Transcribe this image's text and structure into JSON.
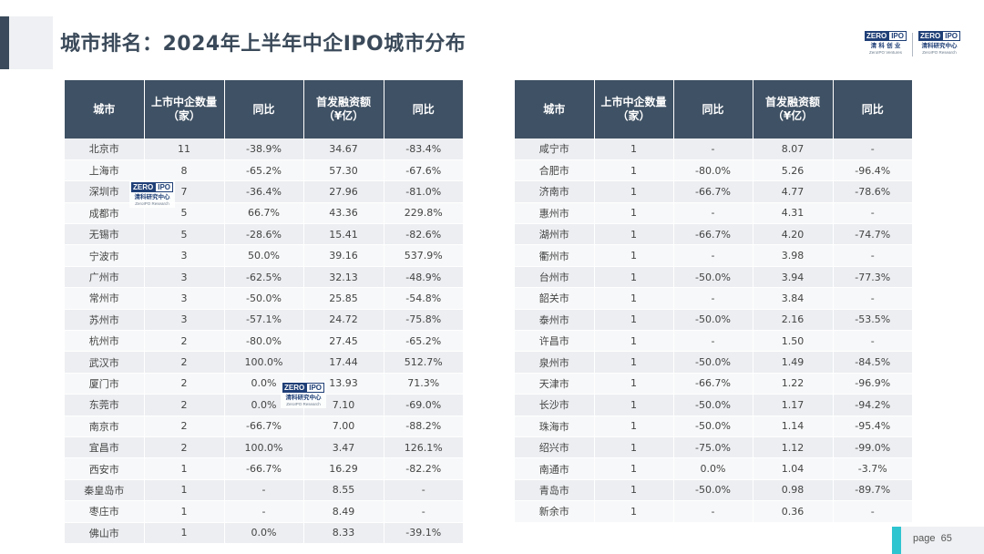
{
  "title": "城市排名：2024年上半年中企IPO城市分布",
  "logos": {
    "left": {
      "mark_a": "ZERO",
      "mark_b": "IPO",
      "cn": "清 科 创 业",
      "en": "ZeroIPO Ventures"
    },
    "right": {
      "mark_a": "ZERO",
      "mark_b": "IPO",
      "cn": "清科研究中心",
      "en": "ZeroIPO Research"
    }
  },
  "watermark": {
    "mark_a": "ZERO",
    "mark_b": "IPO",
    "cn": "清科研究中心",
    "en": "ZeroIPO Research"
  },
  "table_headers": [
    "城市",
    "上市中企数量\n（家）",
    "同比",
    "首发融资额\n（¥亿）",
    "同比"
  ],
  "left_table": [
    [
      "北京市",
      "11",
      "-38.9%",
      "34.67",
      "-83.4%"
    ],
    [
      "上海市",
      "8",
      "-65.2%",
      "57.30",
      "-67.6%"
    ],
    [
      "深圳市",
      "7",
      "-36.4%",
      "27.96",
      "-81.0%"
    ],
    [
      "成都市",
      "5",
      "66.7%",
      "43.36",
      "229.8%"
    ],
    [
      "无锡市",
      "5",
      "-28.6%",
      "15.41",
      "-82.6%"
    ],
    [
      "宁波市",
      "3",
      "50.0%",
      "39.16",
      "537.9%"
    ],
    [
      "广州市",
      "3",
      "-62.5%",
      "32.13",
      "-48.9%"
    ],
    [
      "常州市",
      "3",
      "-50.0%",
      "25.85",
      "-54.8%"
    ],
    [
      "苏州市",
      "3",
      "-57.1%",
      "24.72",
      "-75.8%"
    ],
    [
      "杭州市",
      "2",
      "-80.0%",
      "27.45",
      "-65.2%"
    ],
    [
      "武汉市",
      "2",
      "100.0%",
      "17.44",
      "512.7%"
    ],
    [
      "厦门市",
      "2",
      "0.0%",
      "13.93",
      "71.3%"
    ],
    [
      "东莞市",
      "2",
      "0.0%",
      "7.10",
      "-69.0%"
    ],
    [
      "南京市",
      "2",
      "-66.7%",
      "7.00",
      "-88.2%"
    ],
    [
      "宜昌市",
      "2",
      "100.0%",
      "3.47",
      "126.1%"
    ],
    [
      "西安市",
      "1",
      "-66.7%",
      "16.29",
      "-82.2%"
    ],
    [
      "秦皇岛市",
      "1",
      "-",
      "8.55",
      "-"
    ],
    [
      "枣庄市",
      "1",
      "-",
      "8.49",
      "-"
    ],
    [
      "佛山市",
      "1",
      "0.0%",
      "8.33",
      "-39.1%"
    ]
  ],
  "right_table": [
    [
      "咸宁市",
      "1",
      "-",
      "8.07",
      "-"
    ],
    [
      "合肥市",
      "1",
      "-80.0%",
      "5.26",
      "-96.4%"
    ],
    [
      "济南市",
      "1",
      "-66.7%",
      "4.77",
      "-78.6%"
    ],
    [
      "惠州市",
      "1",
      "-",
      "4.31",
      "-"
    ],
    [
      "湖州市",
      "1",
      "-66.7%",
      "4.20",
      "-74.7%"
    ],
    [
      "衢州市",
      "1",
      "-",
      "3.98",
      "-"
    ],
    [
      "台州市",
      "1",
      "-50.0%",
      "3.94",
      "-77.3%"
    ],
    [
      "韶关市",
      "1",
      "-",
      "3.84",
      "-"
    ],
    [
      "泰州市",
      "1",
      "-50.0%",
      "2.16",
      "-53.5%"
    ],
    [
      "许昌市",
      "1",
      "-",
      "1.50",
      "-"
    ],
    [
      "泉州市",
      "1",
      "-50.0%",
      "1.49",
      "-84.5%"
    ],
    [
      "天津市",
      "1",
      "-66.7%",
      "1.22",
      "-96.9%"
    ],
    [
      "长沙市",
      "1",
      "-50.0%",
      "1.17",
      "-94.2%"
    ],
    [
      "珠海市",
      "1",
      "-50.0%",
      "1.14",
      "-95.4%"
    ],
    [
      "绍兴市",
      "1",
      "-75.0%",
      "1.12",
      "-99.0%"
    ],
    [
      "南通市",
      "1",
      "0.0%",
      "1.04",
      "-3.7%"
    ],
    [
      "青岛市",
      "1",
      "-50.0%",
      "0.98",
      "-89.7%"
    ],
    [
      "新余市",
      "1",
      "-",
      "0.36",
      "-"
    ]
  ],
  "footer": {
    "page_label": "page",
    "page_number": "65"
  }
}
